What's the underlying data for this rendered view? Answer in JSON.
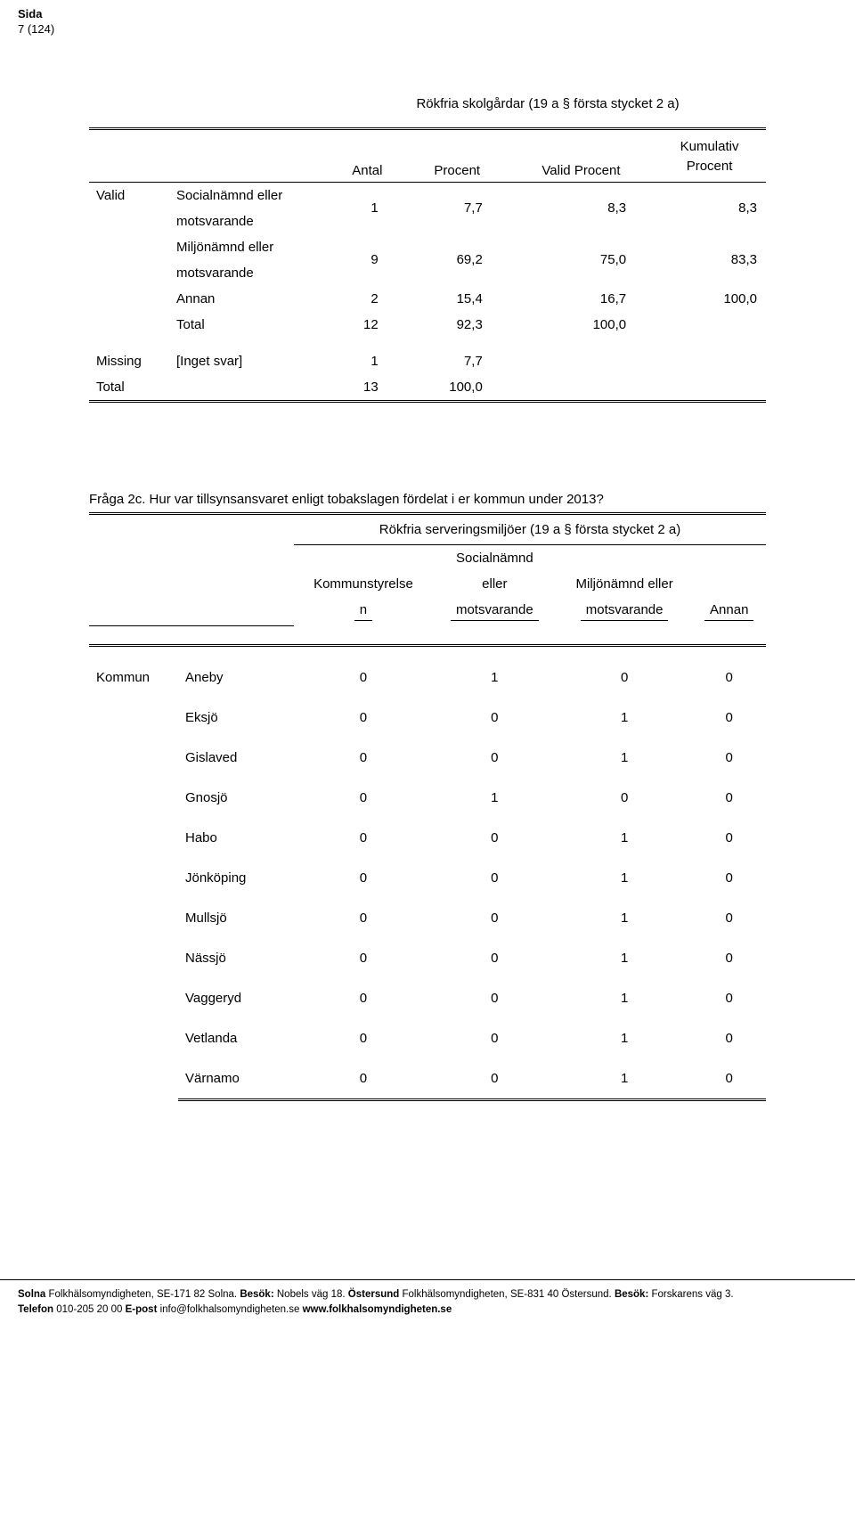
{
  "page_header": {
    "label": "Sida",
    "value": "7 (124)"
  },
  "table1": {
    "type": "table",
    "title": "Rökfria skolgårdar (19 a § första stycket 2 a)",
    "columns": [
      "Antal",
      "Procent",
      "Valid Procent",
      "Kumulativ Procent"
    ],
    "col_kumulativ_top": "Kumulativ",
    "col_kumulativ_bottom": "Procent",
    "stub_valid": "Valid",
    "stub_missing": "Missing",
    "stub_total": "Total",
    "rows": [
      {
        "label_l1": "Socialnämnd eller",
        "label_l2": "motsvarande",
        "antal": "1",
        "procent": "7,7",
        "valid": "8,3",
        "kum": "8,3"
      },
      {
        "label_l1": "Miljönämnd eller",
        "label_l2": "motsvarande",
        "antal": "9",
        "procent": "69,2",
        "valid": "75,0",
        "kum": "83,3"
      },
      {
        "label_l1": "Annan",
        "label_l2": "",
        "antal": "2",
        "procent": "15,4",
        "valid": "16,7",
        "kum": "100,0"
      },
      {
        "label_l1": "Total",
        "label_l2": "",
        "antal": "12",
        "procent": "92,3",
        "valid": "100,0",
        "kum": ""
      }
    ],
    "missing_row": {
      "label": "[Inget svar]",
      "antal": "1",
      "procent": "7,7"
    },
    "total_row": {
      "antal": "13",
      "procent": "100,0"
    },
    "colors": {
      "text": "#000000",
      "rule": "#000000",
      "background": "#ffffff"
    },
    "fontsize": 15
  },
  "question": {
    "text": "Fråga 2c. Hur var tillsynsansvaret enligt tobakslagen fördelat i er kommun under 2013?"
  },
  "table2": {
    "type": "table",
    "subtitle": "Rökfria serveringsmiljöer (19 a § första stycket 2 a)",
    "columns": [
      {
        "l1": "Kommunstyrelse",
        "l2": "n"
      },
      {
        "l1": "Socialnämnd",
        "l2": "eller",
        "l3": "motsvarande"
      },
      {
        "l1": "Miljönämnd eller",
        "l2": "motsvarande"
      },
      {
        "l1": "Annan"
      }
    ],
    "stub_group": "Kommun",
    "rows": [
      {
        "name": "Aneby",
        "v": [
          "0",
          "1",
          "0",
          "0"
        ]
      },
      {
        "name": "Eksjö",
        "v": [
          "0",
          "0",
          "1",
          "0"
        ]
      },
      {
        "name": "Gislaved",
        "v": [
          "0",
          "0",
          "1",
          "0"
        ]
      },
      {
        "name": "Gnosjö",
        "v": [
          "0",
          "1",
          "0",
          "0"
        ]
      },
      {
        "name": "Habo",
        "v": [
          "0",
          "0",
          "1",
          "0"
        ]
      },
      {
        "name": "Jönköping",
        "v": [
          "0",
          "0",
          "1",
          "0"
        ]
      },
      {
        "name": "Mullsjö",
        "v": [
          "0",
          "0",
          "1",
          "0"
        ]
      },
      {
        "name": "Nässjö",
        "v": [
          "0",
          "0",
          "1",
          "0"
        ]
      },
      {
        "name": "Vaggeryd",
        "v": [
          "0",
          "0",
          "1",
          "0"
        ]
      },
      {
        "name": "Vetlanda",
        "v": [
          "0",
          "0",
          "1",
          "0"
        ]
      },
      {
        "name": "Värnamo",
        "v": [
          "0",
          "0",
          "1",
          "0"
        ]
      }
    ],
    "colors": {
      "text": "#000000",
      "rule": "#000000",
      "background": "#ffffff"
    },
    "fontsize": 15
  },
  "footer": {
    "line1_parts": {
      "b1": "Solna",
      "t1": " Folkhälsomyndigheten, SE-171 82 Solna. ",
      "b2": "Besök:",
      "t2": " Nobels väg 18. ",
      "b3": "Östersund",
      "t3": " Folkhälsomyndigheten, SE-831 40 Östersund. ",
      "b4": "Besök:",
      "t4": " Forskarens väg 3."
    },
    "line2_parts": {
      "b1": "Telefon",
      "t1": " 010-205 20 00 ",
      "b2": "E-post",
      "t2": " info@folkhalsomyndigheten.se ",
      "b3": "www.folkhalsomyndigheten.se"
    }
  }
}
